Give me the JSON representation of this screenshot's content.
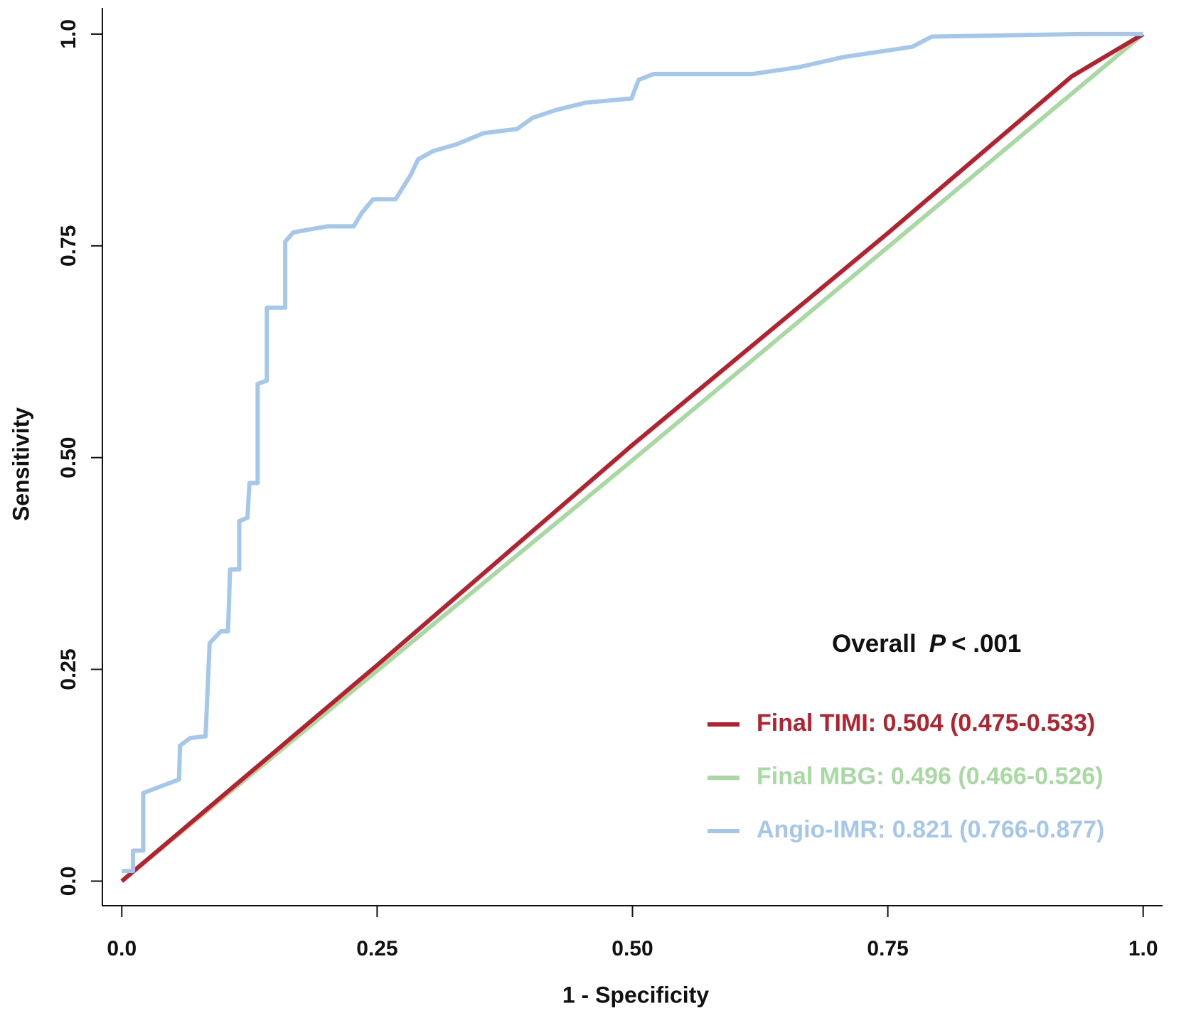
{
  "chart_data": {
    "type": "line",
    "xlabel": "1 - Specificity",
    "ylabel": "Sensitivity",
    "annotation": [
      "Overall",
      "P",
      "< .001"
    ],
    "xlim": [
      -0.019,
      1.019
    ],
    "ylim": [
      -0.029,
      1.031
    ],
    "xticks": [
      {
        "value": 0,
        "label": "0.0"
      },
      0.25,
      {
        "value": 0.5,
        "label": "0.50"
      },
      0.75,
      {
        "value": 1,
        "label": "1.0"
      }
    ],
    "yticks": [
      {
        "value": 0,
        "label": "0.0"
      },
      0.25,
      {
        "value": 0.5,
        "label": "0.50"
      },
      0.75,
      {
        "value": 1,
        "label": "1.0"
      }
    ],
    "series": [
      {
        "name": "Final TIMI: 0.504 (0.475-0.533)",
        "color": "#b3222e",
        "x": [
          0,
          0.25,
          0.5,
          0.75,
          0.93,
          1
        ],
        "values": [
          0,
          0.255,
          0.515,
          0.765,
          0.95,
          1
        ]
      },
      {
        "name": "Final MBG: 0.496 (0.466-0.526)",
        "color": "#a9d9a3",
        "x": [
          0,
          0.5,
          1
        ],
        "values": [
          0,
          0.497,
          1
        ]
      },
      {
        "name": "Angio-IMR: 0.821 (0.766-0.877)",
        "color": "#a6c7ec",
        "x": [
          0,
          0.011,
          0.011,
          0.021,
          0.021,
          0.034,
          0.056,
          0.057,
          0.067,
          0.082,
          0.086,
          0.097,
          0.104,
          0.106,
          0.115,
          0.115,
          0.123,
          0.125,
          0.133,
          0.133,
          0.142,
          0.142,
          0.16,
          0.16,
          0.168,
          0.201,
          0.227,
          0.235,
          0.246,
          0.268,
          0.283,
          0.29,
          0.305,
          0.328,
          0.354,
          0.387,
          0.402,
          0.424,
          0.454,
          0.499,
          0.506,
          0.521,
          0.618,
          0.663,
          0.707,
          0.774,
          0.793,
          0.938,
          1
        ],
        "values": [
          0.012,
          0.012,
          0.036,
          0.036,
          0.104,
          0.11,
          0.12,
          0.16,
          0.169,
          0.171,
          0.281,
          0.295,
          0.295,
          0.368,
          0.368,
          0.425,
          0.429,
          0.47,
          0.47,
          0.587,
          0.591,
          0.677,
          0.677,
          0.755,
          0.766,
          0.773,
          0.773,
          0.789,
          0.805,
          0.805,
          0.834,
          0.852,
          0.862,
          0.87,
          0.883,
          0.888,
          0.901,
          0.91,
          0.919,
          0.924,
          0.946,
          0.953,
          0.953,
          0.961,
          0.973,
          0.985,
          0.997,
          1,
          1
        ]
      }
    ]
  }
}
